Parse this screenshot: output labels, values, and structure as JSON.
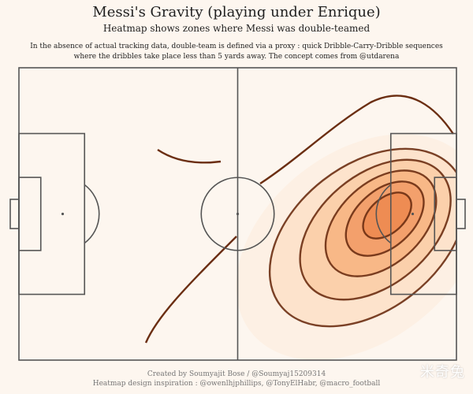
{
  "header": {
    "title": "Messi's Gravity (playing under Enrique)",
    "subtitle": "Heatmap shows zones where Messi was double-teamed",
    "description_line1": "In the absence of actual tracking data, double-team is defined via a proxy : quick Dribble-Carry-Dribble sequences",
    "description_line2": "where the dribbles take place less than 5 yards away. The concept comes from @utdarena"
  },
  "footer": {
    "credit_line1": "Created by Soumyajit Bose / @Soumyaj15209314",
    "credit_line2": "Heatmap design inspiration : @owenlhjphillips, @TonyElHabr, @macro_football",
    "watermark": "米奇兔"
  },
  "chart_data": {
    "type": "heatmap",
    "title": "Messi's Gravity (playing under Enrique)",
    "subtitle": "Heatmap shows zones where Messi was double-teamed",
    "pitch": {
      "length": 120,
      "width": 80,
      "units": "yards"
    },
    "attacking_direction": "right",
    "density_peak": {
      "x": 101,
      "y": 40
    },
    "contour_levels": [
      {
        "level": 1,
        "fill": "#fdf0e4"
      },
      {
        "level": 2,
        "fill": "#fde3cc"
      },
      {
        "level": 3,
        "fill": "#fbd0ab"
      },
      {
        "level": 4,
        "fill": "#f8b887"
      },
      {
        "level": 5,
        "fill": "#f3a06c"
      },
      {
        "level": 6,
        "fill": "#ee8c53"
      }
    ],
    "colors": {
      "background": "#fdf6ef",
      "pitch_lines": "#555555",
      "contour_outline": "#6b2e12"
    },
    "legend": "none",
    "grid": false
  }
}
